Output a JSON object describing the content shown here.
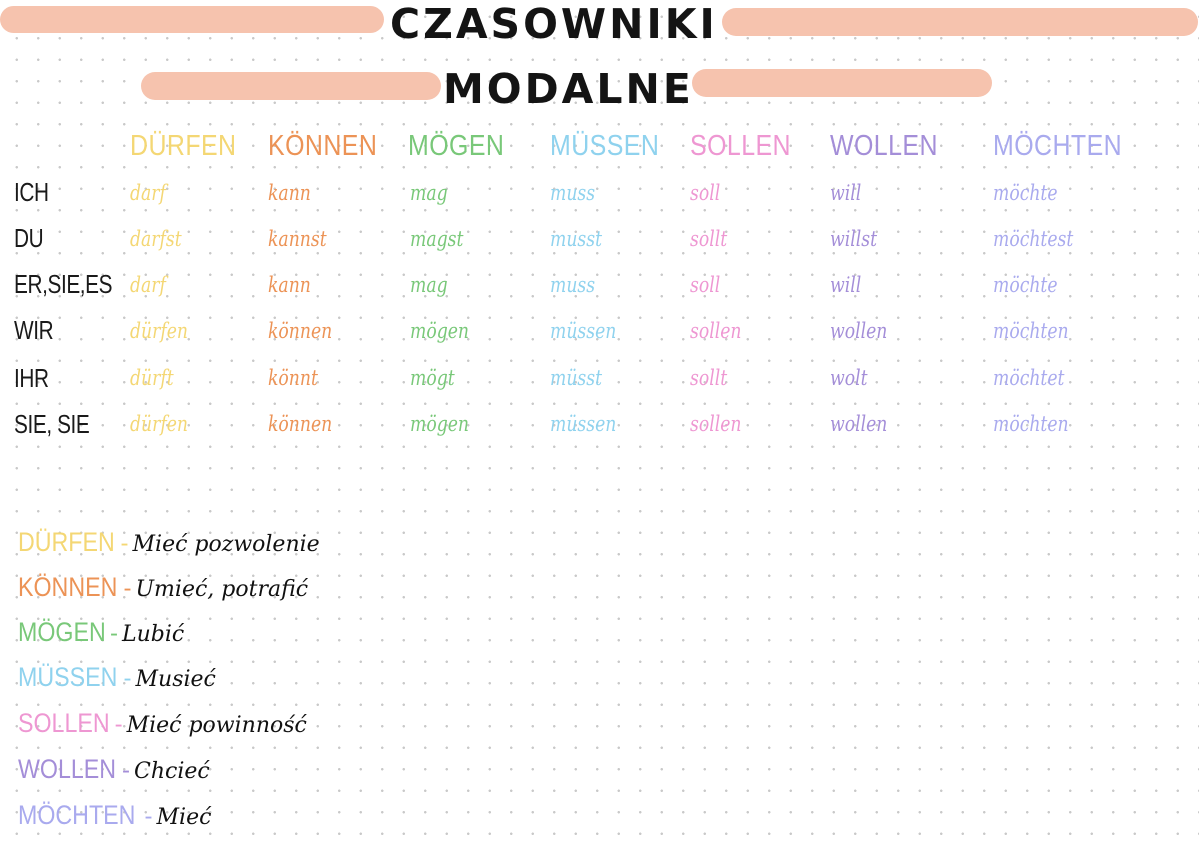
{
  "title": {
    "line1": "CZASOWNIKI",
    "line2": "MODALNE"
  },
  "colors": {
    "banner": "#f6c3ae",
    "durfen": "#f4d774",
    "konnen": "#ec9356",
    "mogen": "#79c879",
    "mussen": "#8fd2ee",
    "sollen": "#ee97d2",
    "wollen": "#a48ed8",
    "mochten": "#a9aaee",
    "ink": "#141414"
  },
  "verbs": [
    "DÜRFEN",
    "KÖNNEN",
    "MÖGEN",
    "MÜSSEN",
    "SOLLEN",
    "WOLLEN",
    "MÖCHTEN"
  ],
  "pronouns": [
    "ICH",
    "DU",
    "ER,SIE,ES",
    "WIR",
    "IHR",
    "SIE, SIE"
  ],
  "table": [
    [
      "darf",
      "kann",
      "mag",
      "muss",
      "soll",
      "will",
      "möchte"
    ],
    [
      "darfst",
      "kannst",
      "magst",
      "musst",
      "sollt",
      "willst",
      "möchtest"
    ],
    [
      "darf",
      "kann",
      "mag",
      "muss",
      "soll",
      "will",
      "möchte"
    ],
    [
      "dürfen",
      "können",
      "mögen",
      "müssen",
      "sollen",
      "wollen",
      "möchten"
    ],
    [
      "dürft",
      "könnt",
      "mögt",
      "müsst",
      "sollt",
      "wolt",
      "möchtet"
    ],
    [
      "dürfen",
      "können",
      "mögen",
      "müssen",
      "sollen",
      "wollen",
      "möchten"
    ]
  ],
  "meanings": [
    {
      "verb": "DÜRFEN",
      "dash": "-",
      "meaning": "Mieć pozwolenie"
    },
    {
      "verb": "KÖNNEN",
      "dash": "-",
      "meaning": "Umieć, potrafić"
    },
    {
      "verb": "MÖGEN",
      "dash": "-",
      "meaning": "Lubić"
    },
    {
      "verb": "MÜSSEN",
      "dash": "-",
      "meaning": "Musieć"
    },
    {
      "verb": "SOLLEN",
      "dash": "-",
      "meaning": "Mieć powinność"
    },
    {
      "verb": "WOLLEN",
      "dash": "-",
      "meaning": "Chcieć"
    },
    {
      "verb": "MÖCHTEN",
      "dash": "-",
      "meaning": "Mieć"
    }
  ]
}
